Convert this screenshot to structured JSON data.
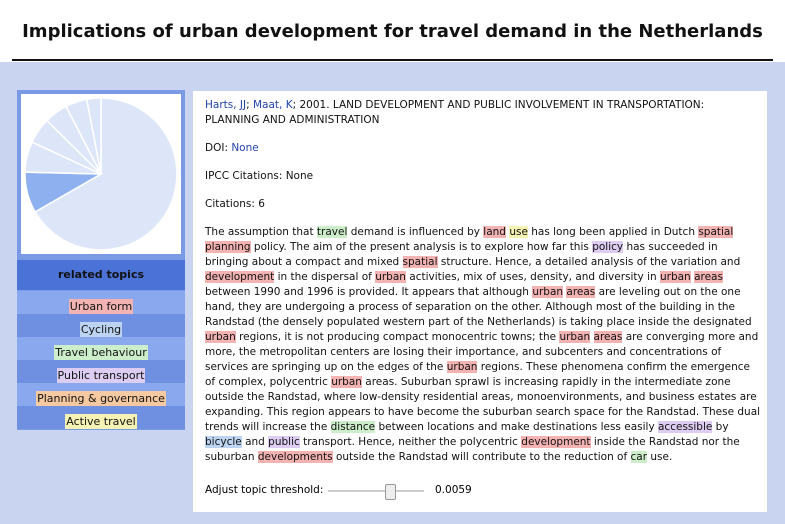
{
  "header": {
    "title": "Implications of urban development for travel demand in the Netherlands"
  },
  "sidebar": {
    "related_title": "related topics",
    "topics": [
      {
        "label": "Urban form",
        "color": "#f4b3b3"
      },
      {
        "label": "Cycling",
        "color": "#bcd4f2"
      },
      {
        "label": "Travel behaviour",
        "color": "#cdeecb"
      },
      {
        "label": "Public transport",
        "color": "#ddcdf2"
      },
      {
        "label": "Planning & governance",
        "color": "#f6c9a0"
      },
      {
        "label": "Active travel",
        "color": "#f6f2b4"
      }
    ],
    "pie": {
      "colors": {
        "highlight": "#8fb0ef",
        "base": "#dde6f8",
        "stroke": "#ffffff"
      },
      "slices": [
        0.667,
        0.087,
        0.065,
        0.055,
        0.05,
        0.046,
        0.03
      ]
    }
  },
  "main": {
    "authors": [
      "Harts, JJ",
      "Maat, K"
    ],
    "year_title": "; 2001. LAND DEVELOPMENT AND PUBLIC INVOLVEMENT IN TRANSPORTATION: PLANNING AND ADMINISTRATION",
    "doi_label": "DOI: ",
    "doi_value": "None",
    "ipcc": "IPCC Citations: None",
    "citations": "Citations: 6",
    "abstract": [
      [
        "The assumption that ",
        ""
      ],
      [
        "travel",
        "green"
      ],
      [
        " demand is influenced by ",
        ""
      ],
      [
        "land",
        "red"
      ],
      [
        " ",
        ""
      ],
      [
        "use",
        "yellow"
      ],
      [
        " has long been applied in Dutch ",
        ""
      ],
      [
        "spatial planning",
        "red"
      ],
      [
        " policy. The aim of the present analysis is to explore how far this ",
        ""
      ],
      [
        "policy",
        "purple"
      ],
      [
        " has succeeded in bringing about a compact and mixed ",
        ""
      ],
      [
        "spatial",
        "red"
      ],
      [
        " structure. Hence, a detailed analysis of the variation and ",
        ""
      ],
      [
        "development",
        "red"
      ],
      [
        " in the dispersal of ",
        ""
      ],
      [
        "urban",
        "red"
      ],
      [
        " activities, mix of uses, density, and diversity in ",
        ""
      ],
      [
        "urban",
        "red"
      ],
      [
        " ",
        ""
      ],
      [
        "areas",
        "red"
      ],
      [
        " between 1990 and 1996 is provided. It appears that although ",
        ""
      ],
      [
        "urban",
        "red"
      ],
      [
        " ",
        ""
      ],
      [
        "areas",
        "red"
      ],
      [
        " are leveling out on the one hand, they are undergoing a process of separation on the other. Although most of the building in the Randstad (the densely populated western part of the Netherlands) is taking place inside the designated ",
        ""
      ],
      [
        "urban",
        "red"
      ],
      [
        " regions, it is not producing compact monocentric towns; the ",
        ""
      ],
      [
        "urban",
        "red"
      ],
      [
        " ",
        ""
      ],
      [
        "areas",
        "red"
      ],
      [
        " are converging more and more, the metropolitan centers are losing their importance, and subcenters and concentrations of services are springing up on the edges of the ",
        ""
      ],
      [
        "urban",
        "red"
      ],
      [
        " regions. These phenomena confirm the emergence of complex, polycentric ",
        ""
      ],
      [
        "urban",
        "red"
      ],
      [
        " areas. Suburban sprawl is increasing rapidly in the intermediate zone outside the Randstad, where low-density residential areas, monoenvironments, and business estates are expanding. This region appears to have become the suburban search space for the Randstad. These dual trends will increase the ",
        ""
      ],
      [
        "distance",
        "green"
      ],
      [
        " between locations and make destinations less easily ",
        ""
      ],
      [
        "accessible",
        "purple"
      ],
      [
        " by ",
        ""
      ],
      [
        "bicycle",
        "blue"
      ],
      [
        " and ",
        ""
      ],
      [
        "public",
        "purple"
      ],
      [
        " transport. Hence, neither the polycentric ",
        ""
      ],
      [
        "development",
        "red"
      ],
      [
        " inside the Randstad nor the suburban ",
        ""
      ],
      [
        "developments",
        "red"
      ],
      [
        " outside the Randstad will contribute to the reduction of ",
        ""
      ],
      [
        "car",
        "green"
      ],
      [
        " use.",
        ""
      ]
    ],
    "threshold_label": "Adjust topic threshold:",
    "threshold_value": "0.0059",
    "threshold_fraction": 0.65
  }
}
